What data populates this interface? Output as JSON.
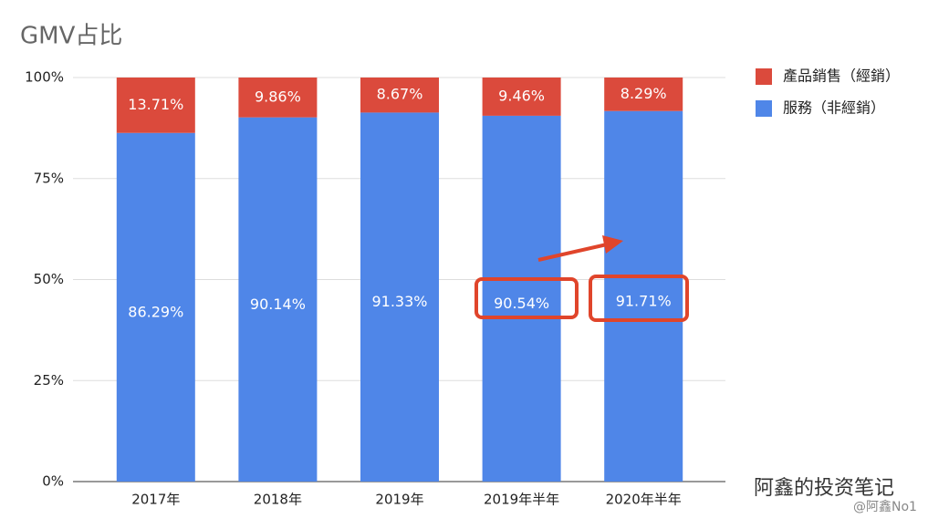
{
  "chart_data": {
    "type": "stacked_bar",
    "title": "GMV占比",
    "categories": [
      "2017年",
      "2018年",
      "2019年",
      "2019年半年",
      "2020年半年"
    ],
    "series": [
      {
        "name": "服務（非經銷）",
        "color": "#4f86e8",
        "values": [
          86.29,
          90.14,
          91.33,
          90.54,
          91.71
        ],
        "value_labels": [
          "86.29%",
          "90.14%",
          "91.33%",
          "90.54%",
          "91.71%"
        ]
      },
      {
        "name": "產品銷售（經銷）",
        "color": "#db4a3c",
        "values": [
          13.71,
          9.86,
          8.67,
          9.46,
          8.29
        ],
        "value_labels": [
          "13.71%",
          "9.86%",
          "8.67%",
          "9.46%",
          "8.29%"
        ]
      }
    ],
    "ylim": [
      0,
      100
    ],
    "yticks": [
      {
        "value": 0,
        "label": "0%"
      },
      {
        "value": 25,
        "label": "25%"
      },
      {
        "value": 50,
        "label": "50%"
      },
      {
        "value": 75,
        "label": "75%"
      },
      {
        "value": 100,
        "label": "100%"
      }
    ],
    "grid": true,
    "legend": "right",
    "watermark": [
      "阿鑫的投资笔记",
      "@阿鑫No1"
    ]
  }
}
